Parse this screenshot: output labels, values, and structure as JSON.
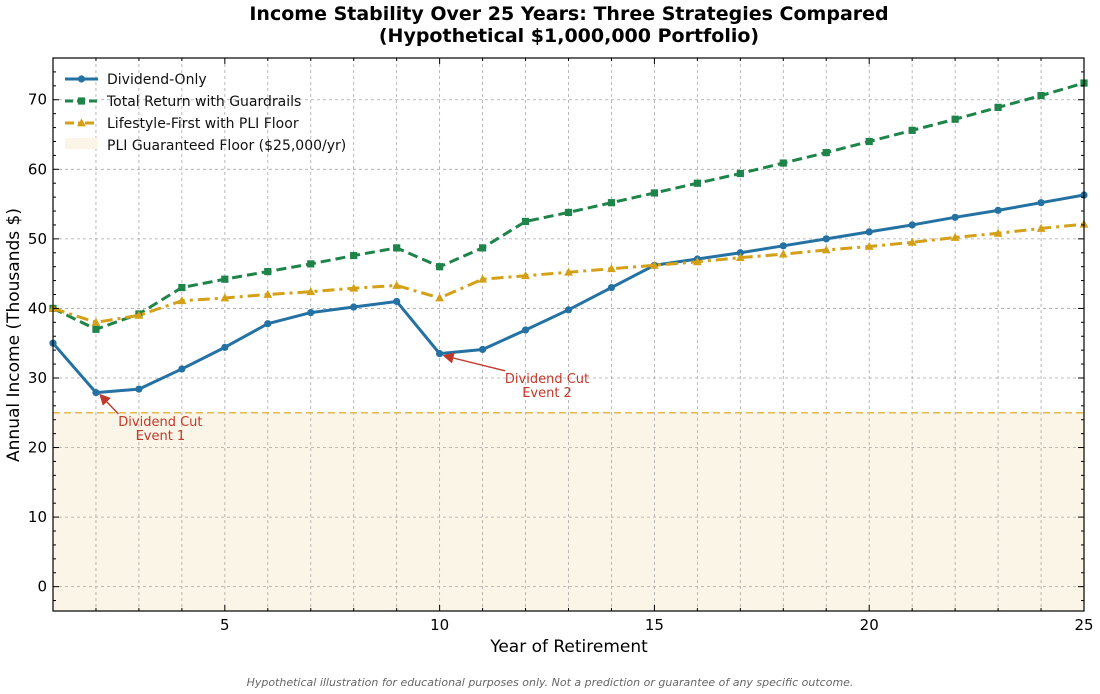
{
  "chart_data": {
    "type": "line",
    "title_line1": "Income Stability Over 25 Years: Three Strategies Compared",
    "title_line2": "(Hypothetical $1,000,000 Portfolio)",
    "xlabel": "Year of Retirement",
    "ylabel": "Annual Income (Thousands $)",
    "xlim": [
      1,
      25
    ],
    "ylim": [
      -3.5,
      76
    ],
    "xticks": [
      5,
      10,
      15,
      20,
      25
    ],
    "yticks": [
      0,
      10,
      20,
      30,
      40,
      50,
      60,
      70
    ],
    "grid": true,
    "legend_position": "top-left",
    "x": [
      1,
      2,
      3,
      4,
      5,
      6,
      7,
      8,
      9,
      10,
      11,
      12,
      13,
      14,
      15,
      16,
      17,
      18,
      19,
      20,
      21,
      22,
      23,
      24,
      25
    ],
    "series": [
      {
        "name": "Dividend-Only",
        "color": "#2471a3",
        "line_style": "solid",
        "marker": "circle",
        "values": [
          35.0,
          27.9,
          28.4,
          31.3,
          34.4,
          37.8,
          39.4,
          40.2,
          41.0,
          33.5,
          34.1,
          36.9,
          39.8,
          43.0,
          46.2,
          47.1,
          48.0,
          49.0,
          50.0,
          51.0,
          52.0,
          53.1,
          54.1,
          55.2,
          56.3
        ]
      },
      {
        "name": "Total Return with Guardrails",
        "color": "#1e8449",
        "line_style": "dashed",
        "marker": "square",
        "values": [
          40.0,
          37.0,
          39.2,
          43.0,
          44.2,
          45.3,
          46.4,
          47.6,
          48.7,
          46.0,
          48.7,
          52.5,
          53.8,
          55.2,
          56.6,
          58.0,
          59.4,
          60.9,
          62.4,
          64.0,
          65.6,
          67.2,
          68.9,
          70.6,
          72.4
        ]
      },
      {
        "name": "Lifestyle-First with PLI Floor",
        "color": "#d4a017",
        "line_style": "dashdot",
        "marker": "triangle",
        "values": [
          40.0,
          38.0,
          39.0,
          41.1,
          41.5,
          42.0,
          42.4,
          42.9,
          43.3,
          41.5,
          44.2,
          44.7,
          45.2,
          45.7,
          46.2,
          46.7,
          47.3,
          47.8,
          48.4,
          48.9,
          49.5,
          50.2,
          50.8,
          51.5,
          52.1
        ]
      }
    ],
    "floor": {
      "name": "PLI Guaranteed Floor ($25,000/yr)",
      "value": 25,
      "line_color": "#e5b84a",
      "fill_color": "#faf5e6"
    },
    "annotations": [
      {
        "line1": "Dividend Cut",
        "line2": "Event 1",
        "point": [
          2,
          27.9
        ],
        "text_at": [
          3.5,
          23.1
        ]
      },
      {
        "line1": "Dividend Cut",
        "line2": "Event 2",
        "point": [
          10,
          33.5
        ],
        "text_at": [
          12.5,
          29.3
        ]
      }
    ],
    "annotation_color": "#c0392b",
    "footnote": "Hypothetical illustration for educational purposes only. Not a prediction or guarantee of any specific outcome."
  }
}
